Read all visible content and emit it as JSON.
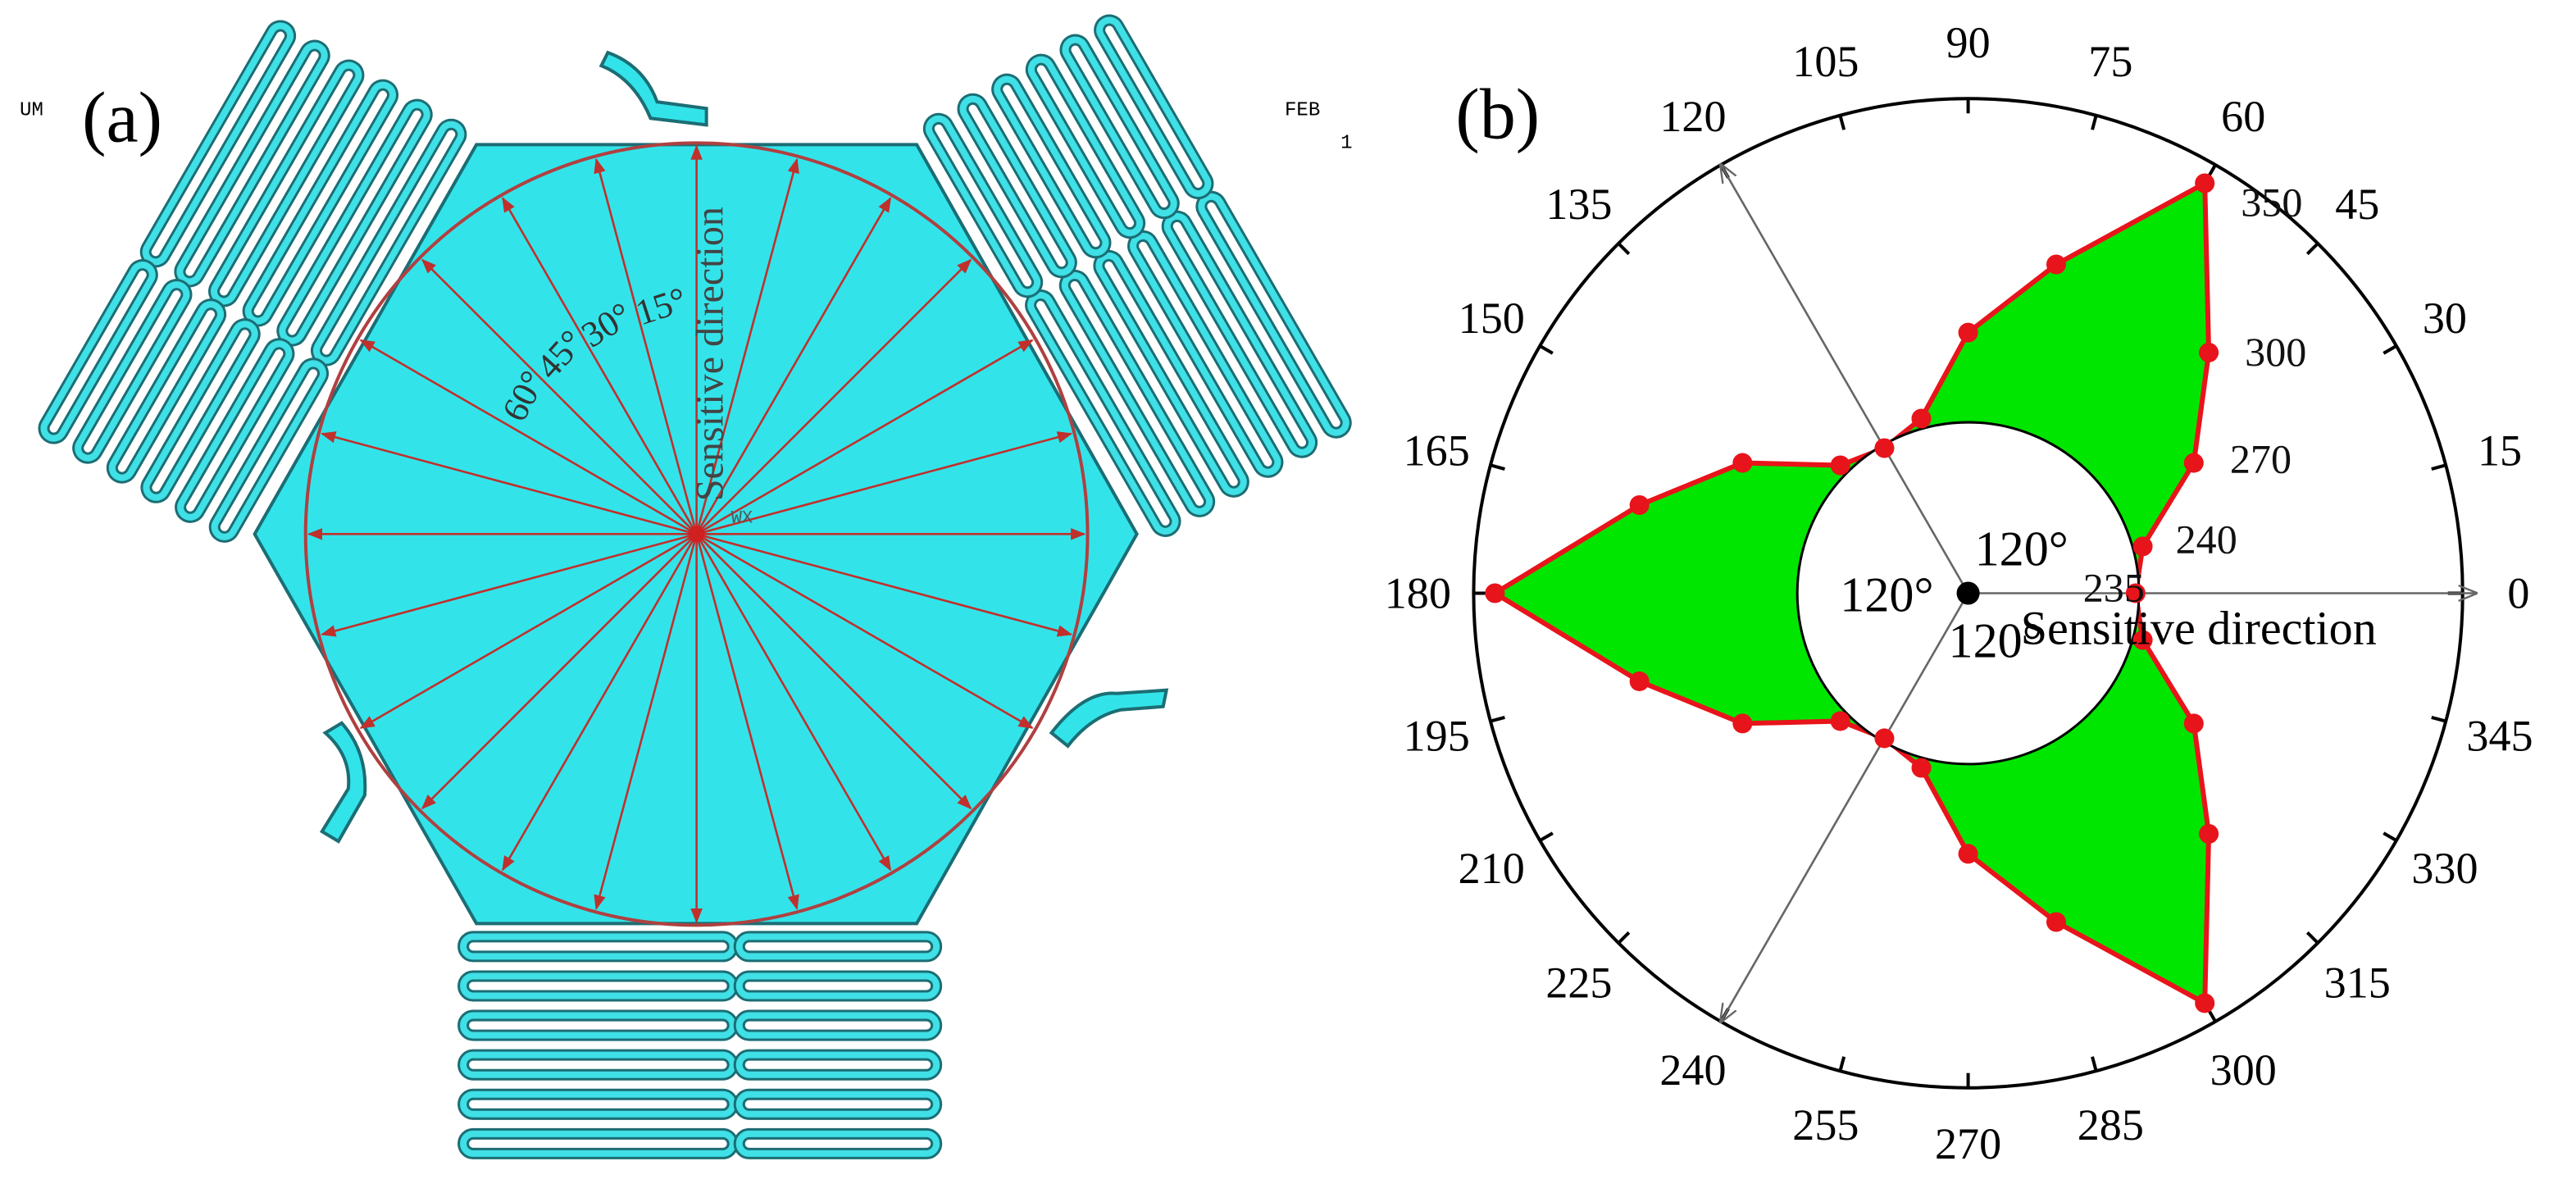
{
  "panel_a": {
    "label": "(a)",
    "corner_left": "UM",
    "corner_right": "FEB",
    "corner_right_sub": "1",
    "axis_label": "Sensitive direction",
    "angle_labels": [
      "60°",
      "45°",
      "30°",
      "15°"
    ],
    "origin_label": "WX"
  },
  "chart_data": {
    "type": "polar",
    "panel_label": "(b)",
    "x": [
      0,
      15,
      30,
      45,
      60,
      75,
      90,
      105,
      120,
      135,
      150,
      165,
      180,
      195,
      210,
      225,
      240,
      255,
      270,
      285,
      300,
      315,
      330,
      345
    ],
    "values": [
      235,
      240,
      270,
      300,
      350,
      300,
      270,
      240,
      235,
      240,
      270,
      300,
      350,
      300,
      270,
      240,
      235,
      240,
      270,
      300,
      350,
      300,
      270,
      240
    ],
    "color": "#00e600",
    "edge_color": "#e8141b",
    "rlim": [
      172,
      358
    ],
    "thetaticks": [
      0,
      15,
      30,
      45,
      60,
      75,
      90,
      105,
      120,
      135,
      150,
      165,
      180,
      195,
      210,
      225,
      240,
      255,
      270,
      285,
      300,
      315,
      330,
      345
    ],
    "annotations": [
      "120°",
      "120°",
      "120°",
      "Sensitive direction"
    ]
  }
}
